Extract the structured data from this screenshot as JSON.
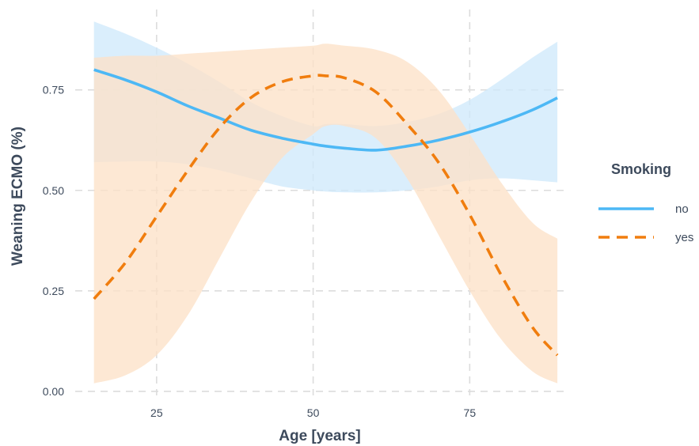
{
  "chart_data": {
    "type": "line",
    "xlabel": "Age [years]",
    "ylabel": "Weaning ECMO (%)",
    "xlim": [
      12,
      90
    ],
    "ylim": [
      -0.01,
      0.95
    ],
    "xticks": [
      25,
      50,
      75
    ],
    "xtick_labels": [
      "25",
      "50",
      "75"
    ],
    "yticks": [
      0,
      0.25,
      0.5,
      0.75
    ],
    "ytick_labels": [
      "0.00",
      "0.25",
      "0.50",
      "0.75"
    ],
    "grid": true,
    "legend": {
      "title": "Smoking",
      "position": "right"
    },
    "x": [
      15,
      20,
      25,
      30,
      35,
      40,
      45,
      50,
      52,
      55,
      60,
      65,
      70,
      75,
      80,
      85,
      89
    ],
    "series": [
      {
        "name": "no",
        "color": "#4db8f5",
        "ribbon_color": "#cfe9fb",
        "line_style": "solid",
        "values": [
          0.8,
          0.775,
          0.745,
          0.71,
          0.68,
          0.65,
          0.63,
          0.615,
          0.61,
          0.605,
          0.6,
          0.61,
          0.625,
          0.645,
          0.67,
          0.7,
          0.73
        ],
        "lower": [
          0.57,
          0.572,
          0.572,
          0.565,
          0.55,
          0.53,
          0.51,
          0.5,
          0.497,
          0.495,
          0.495,
          0.5,
          0.51,
          0.525,
          0.53,
          0.525,
          0.52
        ],
        "upper": [
          0.92,
          0.89,
          0.855,
          0.815,
          0.77,
          0.72,
          0.685,
          0.66,
          0.665,
          0.665,
          0.66,
          0.67,
          0.69,
          0.725,
          0.775,
          0.83,
          0.87
        ]
      },
      {
        "name": "yes",
        "color": "#f07d0e",
        "ribbon_color": "#fde1c8",
        "line_style": "dashed",
        "values": [
          0.23,
          0.32,
          0.435,
          0.55,
          0.655,
          0.73,
          0.77,
          0.785,
          0.785,
          0.78,
          0.745,
          0.665,
          0.57,
          0.44,
          0.29,
          0.16,
          0.09
        ],
        "lower": [
          0.02,
          0.04,
          0.09,
          0.19,
          0.33,
          0.47,
          0.58,
          0.64,
          0.66,
          0.66,
          0.63,
          0.53,
          0.39,
          0.25,
          0.13,
          0.05,
          0.02
        ],
        "upper": [
          0.83,
          0.835,
          0.835,
          0.84,
          0.845,
          0.85,
          0.855,
          0.86,
          0.865,
          0.86,
          0.85,
          0.82,
          0.75,
          0.64,
          0.52,
          0.42,
          0.38
        ]
      }
    ]
  }
}
